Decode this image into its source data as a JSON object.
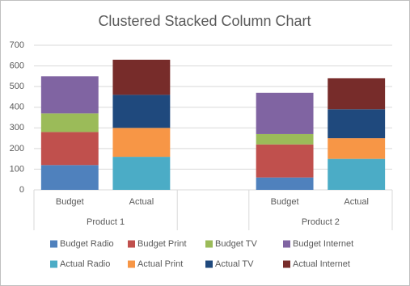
{
  "chart_data": {
    "type": "stacked_bar",
    "title": "Clustered Stacked Column Chart",
    "categories": [
      "Budget",
      "Actual",
      null,
      "Budget",
      "Actual"
    ],
    "category_groups": [
      "Product 1",
      "Product 1",
      null,
      "Product 2",
      "Product 2"
    ],
    "series": [
      {
        "name": "Budget Radio",
        "color": "#4f81bd",
        "values": [
          120,
          null,
          null,
          60,
          null
        ]
      },
      {
        "name": "Budget Print",
        "color": "#c0504d",
        "values": [
          160,
          null,
          null,
          160,
          null
        ]
      },
      {
        "name": "Budget TV",
        "color": "#9bbb59",
        "values": [
          90,
          null,
          null,
          50,
          null
        ]
      },
      {
        "name": "Budget Internet",
        "color": "#8064a2",
        "values": [
          180,
          null,
          null,
          200,
          null
        ]
      },
      {
        "name": "Actual Radio",
        "color": "#4bacc6",
        "values": [
          null,
          160,
          null,
          null,
          150
        ]
      },
      {
        "name": "Actual Print",
        "color": "#f79646",
        "values": [
          null,
          140,
          null,
          null,
          100
        ]
      },
      {
        "name": "Actual TV",
        "color": "#1f497d",
        "values": [
          null,
          160,
          null,
          null,
          140
        ]
      },
      {
        "name": "Actual Internet",
        "color": "#772c2a",
        "values": [
          null,
          170,
          null,
          null,
          150
        ]
      }
    ],
    "ylim": [
      0,
      700
    ],
    "yticks": [
      0,
      100,
      200,
      300,
      400,
      500,
      600,
      700
    ],
    "grid": true,
    "legend": "bottom"
  }
}
